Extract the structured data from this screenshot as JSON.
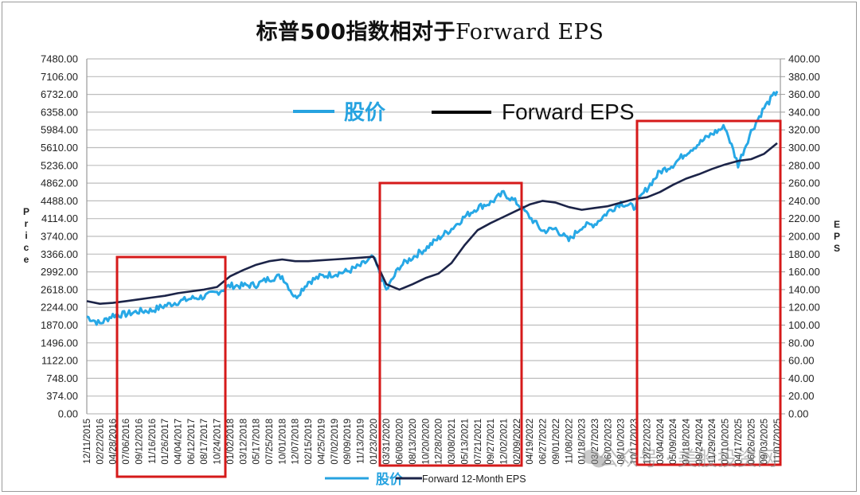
{
  "title_cn": "标普500指数相对于",
  "title_en": "Forward EPS",
  "chart_data": {
    "type": "line",
    "title": "标普500指数相对于Forward EPS",
    "ylabel_left": "Price",
    "ylabel_right": "EPS",
    "ylim_left": [
      0,
      7480
    ],
    "ylim_right": [
      0,
      400
    ],
    "grid": true,
    "yticks_left": [
      "7480.00",
      "7106.00",
      "6732.00",
      "6358.00",
      "5984.00",
      "5610.00",
      "5236.00",
      "4862.00",
      "4488.00",
      "4114.00",
      "3740.00",
      "3366.00",
      "2992.00",
      "2618.00",
      "2244.00",
      "1870.00",
      "1496.00",
      "1122.00",
      "748.00",
      "374.00",
      "0.00"
    ],
    "yticks_right": [
      "400.00",
      "380.00",
      "360.00",
      "340.00",
      "320.00",
      "300.00",
      "280.00",
      "260.00",
      "240.00",
      "220.00",
      "200.00",
      "180.00",
      "160.00",
      "140.00",
      "120.00",
      "100.00",
      "80.00",
      "60.00",
      "40.00",
      "20.00",
      "0.00"
    ],
    "categories": [
      "12/11/2015",
      "02/22/2016",
      "04/28/2016",
      "07/06/2016",
      "09/12/2016",
      "11/16/2016",
      "01/26/2017",
      "04/04/2017",
      "06/12/2017",
      "08/17/2017",
      "10/24/2017",
      "01/02/2018",
      "03/12/2018",
      "05/17/2018",
      "07/25/2018",
      "10/01/2018",
      "12/07/2018",
      "02/15/2019",
      "04/25/2019",
      "07/02/2019",
      "09/09/2019",
      "11/13/2019",
      "01/23/2020",
      "03/31/2020",
      "06/08/2020",
      "08/13/2020",
      "10/20/2020",
      "12/28/2020",
      "03/08/2021",
      "05/13/2021",
      "07/21/2021",
      "09/27/2021",
      "12/02/2021",
      "02/09/2022",
      "04/19/2022",
      "06/27/2022",
      "09/01/2022",
      "11/08/2022",
      "01/18/2023",
      "03/27/2023",
      "06/02/2023",
      "08/10/2023",
      "10/17/2023",
      "12/22/2023",
      "03/04/2024",
      "05/09/2024",
      "07/18/2024",
      "09/24/2024",
      "11/29/2024",
      "02/10/2025",
      "04/17/2025",
      "06/26/2025",
      "09/03/2025",
      "11/07/2025"
    ],
    "series": [
      {
        "name": "股价",
        "axis": "left",
        "color": "#27a8e6",
        "values": [
          2050,
          1900,
          2080,
          2100,
          2160,
          2180,
          2280,
          2360,
          2430,
          2470,
          2560,
          2700,
          2700,
          2720,
          2850,
          2900,
          2450,
          2780,
          2900,
          2950,
          3000,
          3120,
          3300,
          2600,
          3100,
          3300,
          3480,
          3700,
          3900,
          4150,
          4350,
          4450,
          4650,
          4450,
          4150,
          3850,
          3900,
          3650,
          3950,
          4000,
          4250,
          4450,
          4350,
          4750,
          5100,
          5250,
          5500,
          5700,
          5900,
          6050,
          5250,
          5950,
          6450,
          6800
        ]
      },
      {
        "name": "Forward 12-Month EPS",
        "axis": "right",
        "color": "#1c2448",
        "values": [
          127,
          124,
          125,
          127,
          129,
          131,
          133,
          136,
          138,
          140,
          143,
          155,
          162,
          168,
          172,
          174,
          172,
          172,
          173,
          174,
          175,
          176,
          177,
          146,
          140,
          146,
          153,
          158,
          170,
          190,
          207,
          215,
          222,
          229,
          236,
          240,
          238,
          233,
          230,
          232,
          234,
          238,
          242,
          244,
          250,
          258,
          265,
          270,
          276,
          281,
          285,
          287,
          293,
          305
        ]
      }
    ],
    "legend_inside": [
      {
        "label": "股价",
        "color": "#27a3e0"
      },
      {
        "label": "Forward EPS",
        "color": "#000000"
      }
    ],
    "legend_bottom": [
      {
        "label": "股价",
        "color": "#27a3e0"
      },
      {
        "label": "Forward 12-Month EPS",
        "color": "#1c2448"
      }
    ],
    "annotations": [
      {
        "type": "rect",
        "color": "#d61a1a",
        "from": "07/06/2016",
        "to": "10/24/2017"
      },
      {
        "type": "rect",
        "color": "#d61a1a",
        "from": "03/31/2020",
        "to": "02/09/2022"
      },
      {
        "type": "rect",
        "color": "#d61a1a",
        "from": "12/22/2023",
        "to": "11/07/2025"
      }
    ]
  },
  "watermark": "公众号 · 美股投资网"
}
